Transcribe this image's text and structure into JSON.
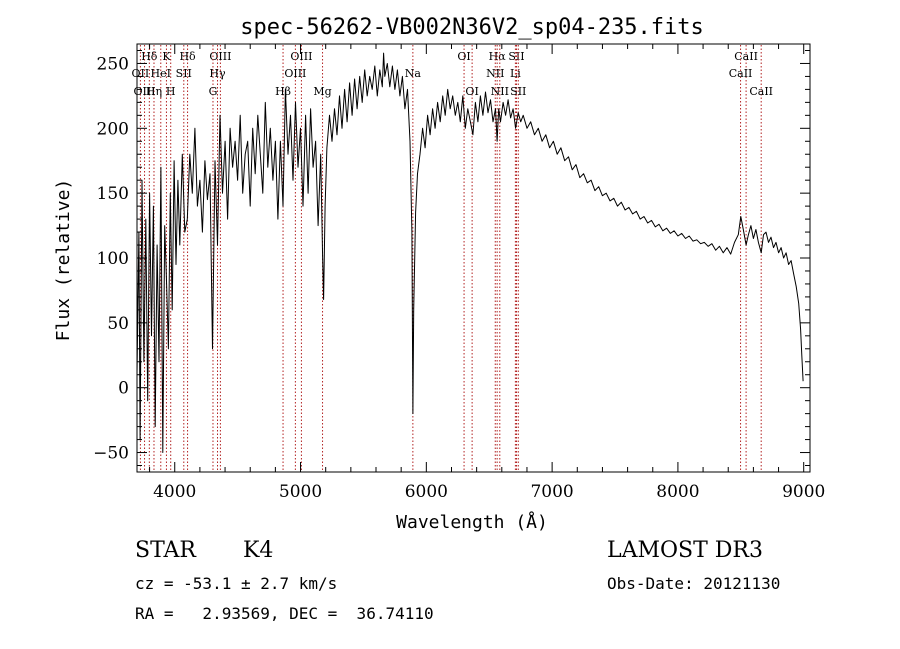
{
  "chart_data": {
    "type": "line",
    "title": "spec-56262-VB002N36V2_sp04-235.fits",
    "xlabel": "Wavelength (Å)",
    "ylabel": "Flux (relative)",
    "xlim": [
      3700,
      9050
    ],
    "ylim": [
      -65,
      265
    ],
    "x_ticks": [
      4000,
      5000,
      6000,
      7000,
      8000,
      9000
    ],
    "x_minor_step": 200,
    "y_ticks": [
      -50,
      0,
      50,
      100,
      150,
      200,
      250
    ],
    "y_minor_step": 10,
    "grid": false,
    "legend": "none",
    "line_color": "#000000",
    "marker_color": "#b22222",
    "series": [
      {
        "name": "",
        "points": [
          [
            3700,
            10
          ],
          [
            3715,
            120
          ],
          [
            3725,
            -40
          ],
          [
            3740,
            160
          ],
          [
            3755,
            20
          ],
          [
            3770,
            130
          ],
          [
            3785,
            -10
          ],
          [
            3800,
            150
          ],
          [
            3815,
            40
          ],
          [
            3830,
            140
          ],
          [
            3845,
            -30
          ],
          [
            3860,
            110
          ],
          [
            3875,
            20
          ],
          [
            3890,
            170
          ],
          [
            3905,
            -50
          ],
          [
            3920,
            125
          ],
          [
            3935,
            80
          ],
          [
            3950,
            30
          ],
          [
            3965,
            150
          ],
          [
            3980,
            60
          ],
          [
            3995,
            175
          ],
          [
            4010,
            95
          ],
          [
            4025,
            160
          ],
          [
            4040,
            110
          ],
          [
            4060,
            180
          ],
          [
            4080,
            120
          ],
          [
            4100,
            130
          ],
          [
            4120,
            180
          ],
          [
            4140,
            150
          ],
          [
            4160,
            200
          ],
          [
            4180,
            140
          ],
          [
            4200,
            160
          ],
          [
            4220,
            120
          ],
          [
            4240,
            175
          ],
          [
            4260,
            145
          ],
          [
            4280,
            165
          ],
          [
            4300,
            30
          ],
          [
            4320,
            175
          ],
          [
            4340,
            110
          ],
          [
            4360,
            210
          ],
          [
            4380,
            150
          ],
          [
            4400,
            190
          ],
          [
            4420,
            130
          ],
          [
            4440,
            200
          ],
          [
            4460,
            170
          ],
          [
            4480,
            190
          ],
          [
            4500,
            160
          ],
          [
            4520,
            210
          ],
          [
            4540,
            150
          ],
          [
            4560,
            180
          ],
          [
            4580,
            190
          ],
          [
            4600,
            140
          ],
          [
            4620,
            200
          ],
          [
            4640,
            165
          ],
          [
            4660,
            210
          ],
          [
            4680,
            180
          ],
          [
            4700,
            150
          ],
          [
            4720,
            220
          ],
          [
            4740,
            170
          ],
          [
            4760,
            200
          ],
          [
            4780,
            160
          ],
          [
            4800,
            190
          ],
          [
            4820,
            130
          ],
          [
            4840,
            190
          ],
          [
            4861,
            140
          ],
          [
            4880,
            230
          ],
          [
            4900,
            180
          ],
          [
            4920,
            210
          ],
          [
            4940,
            160
          ],
          [
            4960,
            220
          ],
          [
            4980,
            170
          ],
          [
            5000,
            200
          ],
          [
            5020,
            140
          ],
          [
            5040,
            210
          ],
          [
            5060,
            150
          ],
          [
            5080,
            215
          ],
          [
            5100,
            170
          ],
          [
            5120,
            190
          ],
          [
            5140,
            125
          ],
          [
            5160,
            180
          ],
          [
            5175,
            105
          ],
          [
            5183,
            68
          ],
          [
            5195,
            140
          ],
          [
            5210,
            185
          ],
          [
            5230,
            210
          ],
          [
            5250,
            190
          ],
          [
            5270,
            215
          ],
          [
            5290,
            195
          ],
          [
            5310,
            225
          ],
          [
            5330,
            200
          ],
          [
            5350,
            230
          ],
          [
            5370,
            205
          ],
          [
            5390,
            235
          ],
          [
            5410,
            210
          ],
          [
            5430,
            238
          ],
          [
            5450,
            215
          ],
          [
            5470,
            240
          ],
          [
            5490,
            220
          ],
          [
            5510,
            245
          ],
          [
            5530,
            225
          ],
          [
            5550,
            240
          ],
          [
            5570,
            230
          ],
          [
            5590,
            248
          ],
          [
            5610,
            225
          ],
          [
            5630,
            245
          ],
          [
            5650,
            232
          ],
          [
            5660,
            258
          ],
          [
            5670,
            240
          ],
          [
            5690,
            250
          ],
          [
            5710,
            232
          ],
          [
            5730,
            248
          ],
          [
            5750,
            230
          ],
          [
            5770,
            245
          ],
          [
            5790,
            225
          ],
          [
            5810,
            240
          ],
          [
            5830,
            215
          ],
          [
            5850,
            230
          ],
          [
            5870,
            190
          ],
          [
            5885,
            120
          ],
          [
            5893,
            -20
          ],
          [
            5900,
            60
          ],
          [
            5915,
            135
          ],
          [
            5930,
            165
          ],
          [
            5950,
            180
          ],
          [
            5970,
            200
          ],
          [
            5990,
            185
          ],
          [
            6010,
            210
          ],
          [
            6030,
            195
          ],
          [
            6050,
            215
          ],
          [
            6070,
            200
          ],
          [
            6090,
            220
          ],
          [
            6110,
            205
          ],
          [
            6130,
            225
          ],
          [
            6150,
            210
          ],
          [
            6170,
            230
          ],
          [
            6190,
            215
          ],
          [
            6210,
            225
          ],
          [
            6230,
            210
          ],
          [
            6250,
            220
          ],
          [
            6270,
            205
          ],
          [
            6290,
            225
          ],
          [
            6310,
            200
          ],
          [
            6330,
            215
          ],
          [
            6350,
            205
          ],
          [
            6370,
            195
          ],
          [
            6390,
            220
          ],
          [
            6410,
            205
          ],
          [
            6430,
            225
          ],
          [
            6450,
            210
          ],
          [
            6470,
            228
          ],
          [
            6490,
            212
          ],
          [
            6510,
            222
          ],
          [
            6530,
            205
          ],
          [
            6550,
            215
          ],
          [
            6563,
            190
          ],
          [
            6575,
            215
          ],
          [
            6590,
            205
          ],
          [
            6610,
            220
          ],
          [
            6630,
            210
          ],
          [
            6650,
            222
          ],
          [
            6670,
            208
          ],
          [
            6690,
            215
          ],
          [
            6710,
            200
          ],
          [
            6730,
            212
          ],
          [
            6750,
            205
          ],
          [
            6770,
            210
          ],
          [
            6800,
            200
          ],
          [
            6830,
            205
          ],
          [
            6860,
            195
          ],
          [
            6890,
            200
          ],
          [
            6920,
            190
          ],
          [
            6950,
            195
          ],
          [
            6980,
            185
          ],
          [
            7010,
            190
          ],
          [
            7040,
            180
          ],
          [
            7070,
            185
          ],
          [
            7100,
            175
          ],
          [
            7130,
            178
          ],
          [
            7160,
            168
          ],
          [
            7190,
            172
          ],
          [
            7220,
            162
          ],
          [
            7250,
            165
          ],
          [
            7280,
            158
          ],
          [
            7310,
            160
          ],
          [
            7340,
            152
          ],
          [
            7370,
            155
          ],
          [
            7400,
            148
          ],
          [
            7430,
            150
          ],
          [
            7460,
            144
          ],
          [
            7490,
            146
          ],
          [
            7520,
            140
          ],
          [
            7550,
            143
          ],
          [
            7580,
            137
          ],
          [
            7610,
            139
          ],
          [
            7640,
            134
          ],
          [
            7670,
            136
          ],
          [
            7700,
            130
          ],
          [
            7730,
            132
          ],
          [
            7760,
            127
          ],
          [
            7790,
            129
          ],
          [
            7820,
            124
          ],
          [
            7850,
            126
          ],
          [
            7880,
            121
          ],
          [
            7910,
            123
          ],
          [
            7940,
            119
          ],
          [
            7970,
            121
          ],
          [
            8000,
            117
          ],
          [
            8030,
            119
          ],
          [
            8060,
            115
          ],
          [
            8090,
            117
          ],
          [
            8120,
            113
          ],
          [
            8150,
            114
          ],
          [
            8180,
            111
          ],
          [
            8210,
            112
          ],
          [
            8240,
            109
          ],
          [
            8270,
            111
          ],
          [
            8300,
            106
          ],
          [
            8330,
            109
          ],
          [
            8360,
            104
          ],
          [
            8390,
            108
          ],
          [
            8420,
            103
          ],
          [
            8450,
            112
          ],
          [
            8480,
            118
          ],
          [
            8500,
            132
          ],
          [
            8520,
            122
          ],
          [
            8542,
            110
          ],
          [
            8560,
            118
          ],
          [
            8580,
            125
          ],
          [
            8600,
            115
          ],
          [
            8620,
            122
          ],
          [
            8640,
            112
          ],
          [
            8662,
            104
          ],
          [
            8680,
            118
          ],
          [
            8700,
            120
          ],
          [
            8720,
            112
          ],
          [
            8740,
            116
          ],
          [
            8760,
            108
          ],
          [
            8780,
            112
          ],
          [
            8800,
            104
          ],
          [
            8820,
            108
          ],
          [
            8840,
            100
          ],
          [
            8860,
            104
          ],
          [
            8880,
            95
          ],
          [
            8900,
            98
          ],
          [
            8920,
            88
          ],
          [
            8940,
            78
          ],
          [
            8960,
            65
          ],
          [
            8975,
            45
          ],
          [
            8985,
            25
          ],
          [
            8995,
            5
          ]
        ]
      }
    ],
    "line_markers": [
      {
        "label": "Hδ",
        "wavelength": 3798,
        "row": 1
      },
      {
        "label": "OII",
        "wavelength": 3727,
        "row": 2
      },
      {
        "label": "OIII",
        "wavelength": 3760,
        "row": 3
      },
      {
        "label": "K",
        "wavelength": 3934,
        "row": 1
      },
      {
        "label": "HeI",
        "wavelength": 3889,
        "row": 2
      },
      {
        "label": "Hη",
        "wavelength": 3835,
        "row": 3
      },
      {
        "label": "Hδ",
        "wavelength": 4102,
        "row": 1
      },
      {
        "label": "SII",
        "wavelength": 4072,
        "row": 2
      },
      {
        "label": "H",
        "wavelength": 3968,
        "row": 3
      },
      {
        "label": "OIII",
        "wavelength": 4363,
        "row": 1
      },
      {
        "label": "Hγ",
        "wavelength": 4340,
        "row": 2
      },
      {
        "label": "G",
        "wavelength": 4304,
        "row": 3
      },
      {
        "label": "OIII",
        "wavelength": 5007,
        "row": 1
      },
      {
        "label": "OIII",
        "wavelength": 4959,
        "row": 2
      },
      {
        "label": "Hβ",
        "wavelength": 4861,
        "row": 3
      },
      {
        "label": "Mg",
        "wavelength": 5175,
        "row": 3
      },
      {
        "label": "Na",
        "wavelength": 5893,
        "row": 2
      },
      {
        "label": "OI",
        "wavelength": 6300,
        "row": 1
      },
      {
        "label": "OI",
        "wavelength": 6364,
        "row": 3
      },
      {
        "label": "Hα",
        "wavelength": 6563,
        "row": 1
      },
      {
        "label": "NII",
        "wavelength": 6548,
        "row": 2
      },
      {
        "label": "NII",
        "wavelength": 6584,
        "row": 3
      },
      {
        "label": "SII",
        "wavelength": 6717,
        "row": 1
      },
      {
        "label": "Li",
        "wavelength": 6708,
        "row": 2
      },
      {
        "label": "SII",
        "wavelength": 6731,
        "row": 3
      },
      {
        "label": "CaII",
        "wavelength": 8542,
        "row": 1
      },
      {
        "label": "CaII",
        "wavelength": 8498,
        "row": 2
      },
      {
        "label": "CaII",
        "wavelength": 8662,
        "row": 3
      }
    ]
  },
  "info": {
    "class_label": "STAR",
    "subclass": "K4",
    "survey": "LAMOST DR3",
    "redshift_line": "cz = -53.1 ± 2.7 km/s",
    "obs_date_line": "Obs-Date: 20121130",
    "coords_line": "RA =   2.93569, DEC =  36.74110"
  }
}
